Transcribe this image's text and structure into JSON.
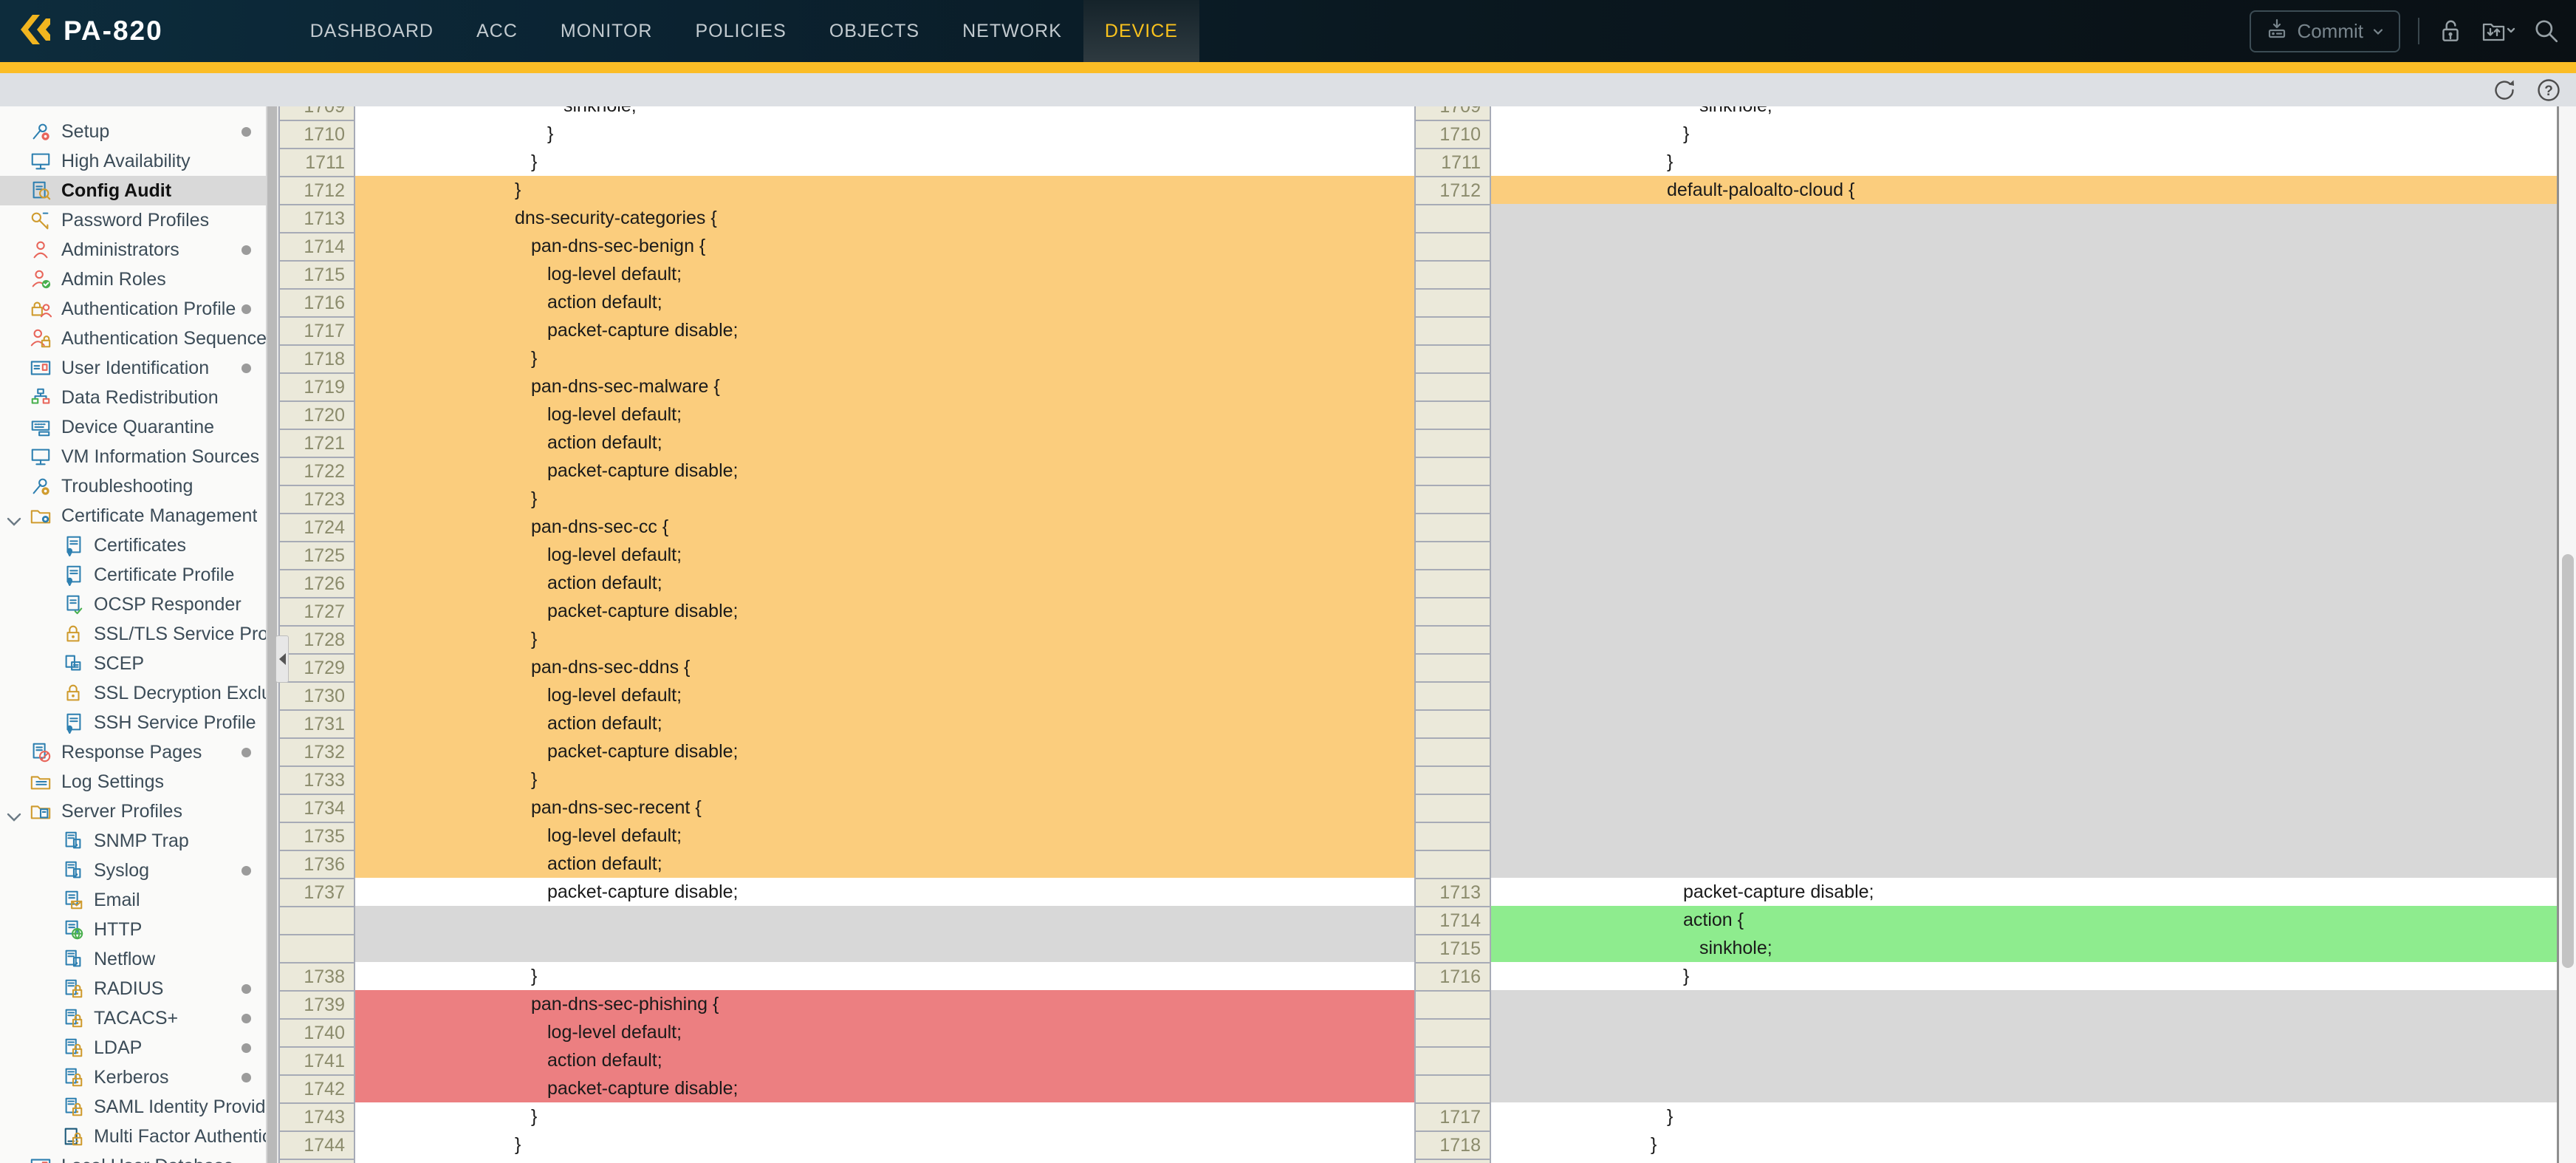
{
  "nav": {
    "brand": "PA-820",
    "items": [
      {
        "label": "DASHBOARD"
      },
      {
        "label": "ACC"
      },
      {
        "label": "MONITOR"
      },
      {
        "label": "POLICIES"
      },
      {
        "label": "OBJECTS"
      },
      {
        "label": "NETWORK"
      },
      {
        "label": "DEVICE",
        "active": true
      }
    ],
    "commit_label": "Commit",
    "right_icons": [
      "commit-button",
      "unlock-icon",
      "folder-transfer-icon",
      "search-icon"
    ]
  },
  "toolbar": {
    "icons": [
      "refresh-icon",
      "help-icon"
    ]
  },
  "sidebar": {
    "selected": "Config Audit",
    "items": [
      {
        "label": "Setup",
        "icon": "tools",
        "c1": "#2d7fb0",
        "c2": "#e8655a",
        "dot": true
      },
      {
        "label": "High Availability",
        "icon": "monitor",
        "c1": "#2d7fb0",
        "c2": "#2d7fb0"
      },
      {
        "label": "Config Audit",
        "icon": "docsearch",
        "c1": "#2d7fb0",
        "c2": "#cf9b2e",
        "selected": true
      },
      {
        "label": "Password Profiles",
        "icon": "key",
        "c1": "#cf9b2e",
        "c2": "#2d7fb0"
      },
      {
        "label": "Administrators",
        "icon": "person",
        "c1": "#e8655a",
        "c2": "#e8655a",
        "dot": true
      },
      {
        "label": "Admin Roles",
        "icon": "personcheck",
        "c1": "#e8655a",
        "c2": "#49b04e"
      },
      {
        "label": "Authentication Profile",
        "icon": "lockperson",
        "c1": "#cf9b2e",
        "c2": "#e8655a",
        "dot": true
      },
      {
        "label": "Authentication Sequence",
        "icon": "personlock",
        "c1": "#e8655a",
        "c2": "#cf9b2e"
      },
      {
        "label": "User Identification",
        "icon": "card",
        "c1": "#2d7fb0",
        "c2": "#e8655a",
        "dot": true
      },
      {
        "label": "Data Redistribution",
        "icon": "org",
        "c1": "#2d7fb0",
        "c2": "#49b04e"
      },
      {
        "label": "Device Quarantine",
        "icon": "device",
        "c1": "#2d7fb0",
        "c2": "#2d7fb0"
      },
      {
        "label": "VM Information Sources",
        "icon": "monitor",
        "c1": "#2d7fb0",
        "c2": "#2d7fb0"
      },
      {
        "label": "Troubleshooting",
        "icon": "tools",
        "c1": "#2d7fb0",
        "c2": "#cf9b2e"
      },
      {
        "label": "Certificate Management",
        "icon": "foldercert",
        "c1": "#cf9b2e",
        "c2": "#2d7fb0",
        "chevron": true
      },
      {
        "label": "Certificates",
        "icon": "cert",
        "c1": "#2d7fb0",
        "c2": "#2d7fb0",
        "child": true
      },
      {
        "label": "Certificate Profile",
        "icon": "cert",
        "c1": "#2d7fb0",
        "c2": "#2d7fb0",
        "child": true
      },
      {
        "label": "OCSP Responder",
        "icon": "certcheck",
        "c1": "#2d7fb0",
        "c2": "#49b04e",
        "child": true
      },
      {
        "label": "SSL/TLS Service Profile",
        "icon": "lock",
        "c1": "#cf9b2e",
        "c2": "#cf9b2e",
        "child": true
      },
      {
        "label": "SCEP",
        "icon": "scep",
        "c1": "#2d7fb0",
        "c2": "#2d7fb0",
        "child": true
      },
      {
        "label": "SSL Decryption Exclusion",
        "icon": "lock",
        "c1": "#cf9b2e",
        "c2": "#cf9b2e",
        "child": true
      },
      {
        "label": "SSH Service Profile",
        "icon": "cert",
        "c1": "#2d7fb0",
        "c2": "#2d7fb0",
        "child": true
      },
      {
        "label": "Response Pages",
        "icon": "docban",
        "c1": "#2d7fb0",
        "c2": "#e8655a",
        "dot": true
      },
      {
        "label": "Log Settings",
        "icon": "folderlist",
        "c1": "#cf9b2e",
        "c2": "#2d7fb0"
      },
      {
        "label": "Server Profiles",
        "icon": "folderserver",
        "c1": "#cf9b2e",
        "c2": "#2d7fb0",
        "chevron": true
      },
      {
        "label": "SNMP Trap",
        "icon": "server",
        "c1": "#2d7fb0",
        "c2": "#2d7fb0",
        "child": true
      },
      {
        "label": "Syslog",
        "icon": "server",
        "c1": "#2d7fb0",
        "c2": "#2d7fb0",
        "child": true,
        "dot": true
      },
      {
        "label": "Email",
        "icon": "docmail",
        "c1": "#2d7fb0",
        "c2": "#cf9b2e",
        "child": true
      },
      {
        "label": "HTTP",
        "icon": "docglobe",
        "c1": "#2d7fb0",
        "c2": "#49b04e",
        "child": true
      },
      {
        "label": "Netflow",
        "icon": "server",
        "c1": "#2d7fb0",
        "c2": "#2d7fb0",
        "child": true
      },
      {
        "label": "RADIUS",
        "icon": "serverlock",
        "c1": "#2d7fb0",
        "c2": "#cf9b2e",
        "child": true,
        "dot": true
      },
      {
        "label": "TACACS+",
        "icon": "serverlock",
        "c1": "#2d7fb0",
        "c2": "#cf9b2e",
        "child": true,
        "dot": true
      },
      {
        "label": "LDAP",
        "icon": "serverlock",
        "c1": "#2d7fb0",
        "c2": "#cf9b2e",
        "child": true,
        "dot": true
      },
      {
        "label": "Kerberos",
        "icon": "serverlock",
        "c1": "#2d7fb0",
        "c2": "#cf9b2e",
        "child": true,
        "dot": true
      },
      {
        "label": "SAML Identity Provider",
        "icon": "serverlock",
        "c1": "#2d7fb0",
        "c2": "#cf9b2e",
        "child": true
      },
      {
        "label": "Multi Factor Authentication",
        "icon": "devicelock",
        "c1": "#1d5a7a",
        "c2": "#cf9b2e",
        "child": true
      },
      {
        "label": "Local User Database",
        "icon": "card",
        "c1": "#2d7fb0",
        "c2": "#e8655a",
        "chevron": true
      }
    ]
  },
  "diff": {
    "left_rows": [
      {
        "n": "1709",
        "t": "sinkhole;",
        "i": 3,
        "bg": "w",
        "cut": "top"
      },
      {
        "n": "1710",
        "t": "}",
        "i": 2,
        "bg": "w"
      },
      {
        "n": "1711",
        "t": "}",
        "i": 1,
        "bg": "w"
      },
      {
        "n": "1712",
        "t": "}",
        "i": 0,
        "bg": "o"
      },
      {
        "n": "1713",
        "t": "dns-security-categories {",
        "i": 0,
        "bg": "o"
      },
      {
        "n": "1714",
        "t": "pan-dns-sec-benign {",
        "i": 1,
        "bg": "o"
      },
      {
        "n": "1715",
        "t": "log-level default;",
        "i": 2,
        "bg": "o"
      },
      {
        "n": "1716",
        "t": "action default;",
        "i": 2,
        "bg": "o"
      },
      {
        "n": "1717",
        "t": "packet-capture disable;",
        "i": 2,
        "bg": "o"
      },
      {
        "n": "1718",
        "t": "}",
        "i": 1,
        "bg": "o"
      },
      {
        "n": "1719",
        "t": "pan-dns-sec-malware {",
        "i": 1,
        "bg": "o"
      },
      {
        "n": "1720",
        "t": "log-level default;",
        "i": 2,
        "bg": "o"
      },
      {
        "n": "1721",
        "t": "action default;",
        "i": 2,
        "bg": "o"
      },
      {
        "n": "1722",
        "t": "packet-capture disable;",
        "i": 2,
        "bg": "o"
      },
      {
        "n": "1723",
        "t": "}",
        "i": 1,
        "bg": "o"
      },
      {
        "n": "1724",
        "t": "pan-dns-sec-cc {",
        "i": 1,
        "bg": "o"
      },
      {
        "n": "1725",
        "t": "log-level default;",
        "i": 2,
        "bg": "o"
      },
      {
        "n": "1726",
        "t": "action default;",
        "i": 2,
        "bg": "o"
      },
      {
        "n": "1727",
        "t": "packet-capture disable;",
        "i": 2,
        "bg": "o"
      },
      {
        "n": "1728",
        "t": "}",
        "i": 1,
        "bg": "o"
      },
      {
        "n": "1729",
        "t": "pan-dns-sec-ddns {",
        "i": 1,
        "bg": "o"
      },
      {
        "n": "1730",
        "t": "log-level default;",
        "i": 2,
        "bg": "o"
      },
      {
        "n": "1731",
        "t": "action default;",
        "i": 2,
        "bg": "o"
      },
      {
        "n": "1732",
        "t": "packet-capture disable;",
        "i": 2,
        "bg": "o"
      },
      {
        "n": "1733",
        "t": "}",
        "i": 1,
        "bg": "o"
      },
      {
        "n": "1734",
        "t": "pan-dns-sec-recent {",
        "i": 1,
        "bg": "o"
      },
      {
        "n": "1735",
        "t": "log-level default;",
        "i": 2,
        "bg": "o"
      },
      {
        "n": "1736",
        "t": "action default;",
        "i": 2,
        "bg": "o"
      },
      {
        "n": "1737",
        "t": "packet-capture disable;",
        "i": 2,
        "bg": "w"
      },
      {
        "bg": "f"
      },
      {
        "bg": "f"
      },
      {
        "n": "1738",
        "t": "}",
        "i": 1,
        "bg": "w"
      },
      {
        "n": "1739",
        "t": "pan-dns-sec-phishing {",
        "i": 1,
        "bg": "r"
      },
      {
        "n": "1740",
        "t": "log-level default;",
        "i": 2,
        "bg": "r"
      },
      {
        "n": "1741",
        "t": "action default;",
        "i": 2,
        "bg": "r"
      },
      {
        "n": "1742",
        "t": "packet-capture disable;",
        "i": 2,
        "bg": "r"
      },
      {
        "n": "1743",
        "t": "}",
        "i": 1,
        "bg": "w"
      },
      {
        "n": "1744",
        "t": "}",
        "i": 0,
        "bg": "w"
      },
      {
        "bg": "w",
        "cut": "bottom"
      }
    ],
    "right_rows": [
      {
        "n": "1709",
        "t": "sinkhole;",
        "i": 3,
        "bg": "w",
        "cut": "top"
      },
      {
        "n": "1710",
        "t": "}",
        "i": 2,
        "bg": "w"
      },
      {
        "n": "1711",
        "t": "}",
        "i": 1,
        "bg": "w"
      },
      {
        "n": "1712",
        "t": "default-paloalto-cloud {",
        "i": 1,
        "bg": "o"
      },
      {
        "bg": "f"
      },
      {
        "bg": "f"
      },
      {
        "bg": "f"
      },
      {
        "bg": "f"
      },
      {
        "bg": "f"
      },
      {
        "bg": "f"
      },
      {
        "bg": "f"
      },
      {
        "bg": "f"
      },
      {
        "bg": "f"
      },
      {
        "bg": "f"
      },
      {
        "bg": "f"
      },
      {
        "bg": "f"
      },
      {
        "bg": "f"
      },
      {
        "bg": "f"
      },
      {
        "bg": "f"
      },
      {
        "bg": "f"
      },
      {
        "bg": "f"
      },
      {
        "bg": "f"
      },
      {
        "bg": "f"
      },
      {
        "bg": "f"
      },
      {
        "bg": "f"
      },
      {
        "bg": "f"
      },
      {
        "bg": "f"
      },
      {
        "bg": "f"
      },
      {
        "n": "1713",
        "t": "packet-capture disable;",
        "i": 2,
        "bg": "w"
      },
      {
        "n": "1714",
        "t": "action {",
        "i": 2,
        "bg": "g"
      },
      {
        "n": "1715",
        "t": "sinkhole;",
        "i": 3,
        "bg": "g"
      },
      {
        "n": "1716",
        "t": "}",
        "i": 2,
        "bg": "w"
      },
      {
        "bg": "f"
      },
      {
        "bg": "f"
      },
      {
        "bg": "f"
      },
      {
        "bg": "f"
      },
      {
        "n": "1717",
        "t": "}",
        "i": 1,
        "bg": "w"
      },
      {
        "n": "1718",
        "t": "}",
        "i": 0,
        "bg": "w"
      },
      {
        "bg": "w",
        "cut": "bottom"
      }
    ]
  },
  "colors": {
    "stripe_gold": "#fbbd26",
    "nav_active_text": "#f9c21d",
    "diff_changed": "#fbcd7d",
    "diff_added": "#8eec8e",
    "diff_removed": "#ec7f81",
    "diff_filler": "#d8d8d8",
    "gutter_bg": "#ebe9da",
    "gutter_text": "#8b8b6c",
    "sidebar_selected": "#d9d9d9"
  }
}
